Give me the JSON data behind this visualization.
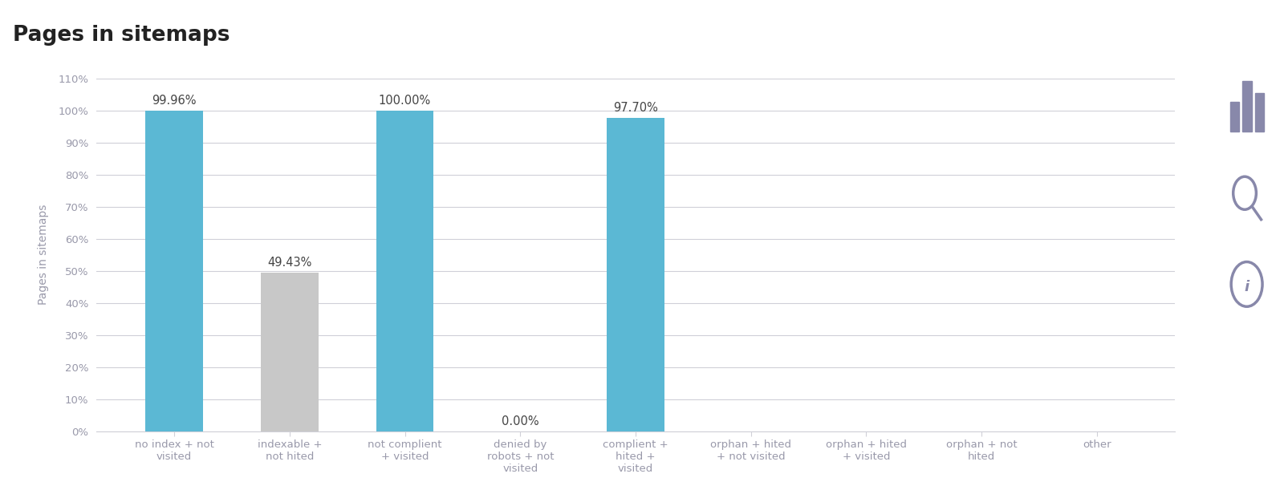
{
  "title": "Pages in sitemaps",
  "ylabel": "Pages in sitemaps",
  "categories": [
    "no index + not\nvisited",
    "indexable +\nnot hited",
    "not complient\n+ visited",
    "denied by\nrobots + not\nvisited",
    "complient +\nhited +\nvisited",
    "orphan + hited\n+ not visited",
    "orphan + hited\n+ visited",
    "orphan + not\nhited",
    "other"
  ],
  "values": [
    99.96,
    49.43,
    100.0,
    0.0,
    97.7,
    0.0,
    0.0,
    0.0,
    0.0
  ],
  "bar_colors": [
    "#5BB8D4",
    "#C8C8C8",
    "#5BB8D4",
    "#C8C8C8",
    "#5BB8D4",
    "#C8C8C8",
    "#C8C8C8",
    "#C8C8C8",
    "#C8C8C8"
  ],
  "show_labels": [
    true,
    true,
    true,
    true,
    true,
    false,
    false,
    false,
    false
  ],
  "ylim": [
    0,
    110
  ],
  "yticks": [
    0,
    10,
    20,
    30,
    40,
    50,
    60,
    70,
    80,
    90,
    100,
    110
  ],
  "ytick_labels": [
    "0%",
    "10%",
    "20%",
    "30%",
    "40%",
    "50%",
    "60%",
    "70%",
    "80%",
    "90%",
    "100%",
    "110%"
  ],
  "background_color": "#ffffff",
  "grid_color": "#d0d0d8",
  "bar_width": 0.5,
  "title_fontsize": 19,
  "axis_label_fontsize": 10,
  "tick_label_fontsize": 9.5,
  "value_label_fontsize": 10.5,
  "ylabel_color": "#9999aa",
  "tick_color": "#9999aa",
  "value_label_color": "#444444",
  "title_color": "#222222"
}
